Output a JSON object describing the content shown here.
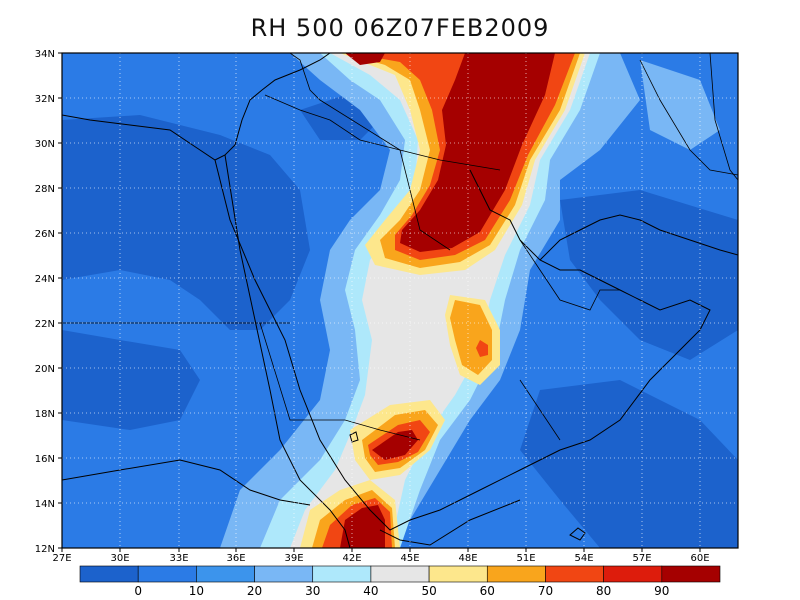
{
  "title": "RH 500 06Z07FEB2009",
  "map": {
    "lat_labels": [
      "34N",
      "32N",
      "30N",
      "28N",
      "26N",
      "24N",
      "22N",
      "20N",
      "18N",
      "16N",
      "14N",
      "12N"
    ],
    "lon_labels": [
      "27E",
      "30E",
      "33E",
      "36E",
      "39E",
      "42E",
      "45E",
      "48E",
      "51E",
      "54E",
      "57E",
      "60E"
    ]
  },
  "colorbar": {
    "labels": [
      "0",
      "10",
      "20",
      "30",
      "40",
      "50",
      "60",
      "70",
      "80",
      "90"
    ],
    "colors": [
      "#1c62cc",
      "#2b7be6",
      "#3c94ec",
      "#79b7f5",
      "#aee8fb",
      "#e6e6e6",
      "#fde78c",
      "#f9a51c",
      "#f14613",
      "#dd1c0c",
      "#a50000"
    ]
  },
  "colors": {
    "blue_dark": "#1f67d6",
    "blue_mid": "#3a8ce9",
    "blue_light": "#7bb8f4",
    "cyan": "#aee8fb",
    "grey": "#e6e6e6",
    "yellow": "#fde78c",
    "orange": "#f9a51c",
    "red": "#f14613",
    "darkred": "#a50000"
  }
}
